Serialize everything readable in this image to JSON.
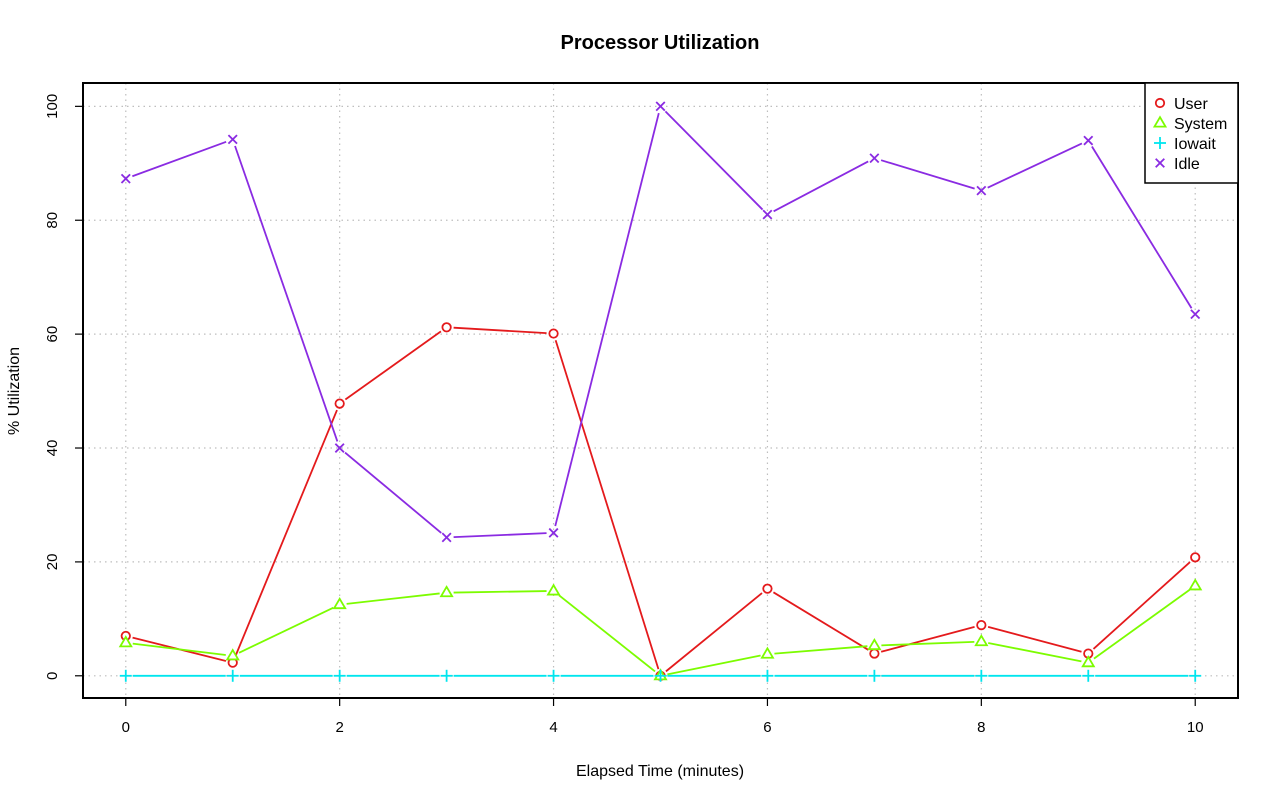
{
  "chart_data": {
    "type": "line",
    "title": "Processor Utilization",
    "xlabel": "Elapsed Time (minutes)",
    "ylabel": "% Utilization",
    "x": [
      0,
      1,
      2,
      3,
      4,
      5,
      6,
      7,
      8,
      9,
      10
    ],
    "xlim": [
      -0.4,
      10.4
    ],
    "ylim": [
      -3.9,
      104.1
    ],
    "xticks": [
      0,
      2,
      4,
      6,
      8,
      10
    ],
    "yticks": [
      0,
      20,
      40,
      60,
      80,
      100
    ],
    "grid": true,
    "legend": "top-right",
    "series": [
      {
        "name": "User",
        "color": "#e41a1c",
        "marker": "circle",
        "values": [
          7.0,
          2.3,
          47.8,
          61.2,
          60.1,
          0.0,
          15.3,
          3.9,
          8.9,
          3.9,
          20.8
        ]
      },
      {
        "name": "System",
        "color": "#7cfc00",
        "marker": "triangle",
        "values": [
          5.8,
          3.5,
          12.5,
          14.6,
          14.9,
          0.0,
          3.8,
          5.3,
          6.0,
          2.3,
          15.8
        ]
      },
      {
        "name": "Iowait",
        "color": "#00e5ee",
        "marker": "plus",
        "values": [
          0,
          0,
          0,
          0,
          0,
          0,
          0,
          0,
          0,
          0,
          0
        ]
      },
      {
        "name": "Idle",
        "color": "#8a2be2",
        "marker": "x",
        "values": [
          87.3,
          94.2,
          40.0,
          24.3,
          25.1,
          100.0,
          81.0,
          90.9,
          85.2,
          94.0,
          63.5
        ]
      }
    ]
  }
}
